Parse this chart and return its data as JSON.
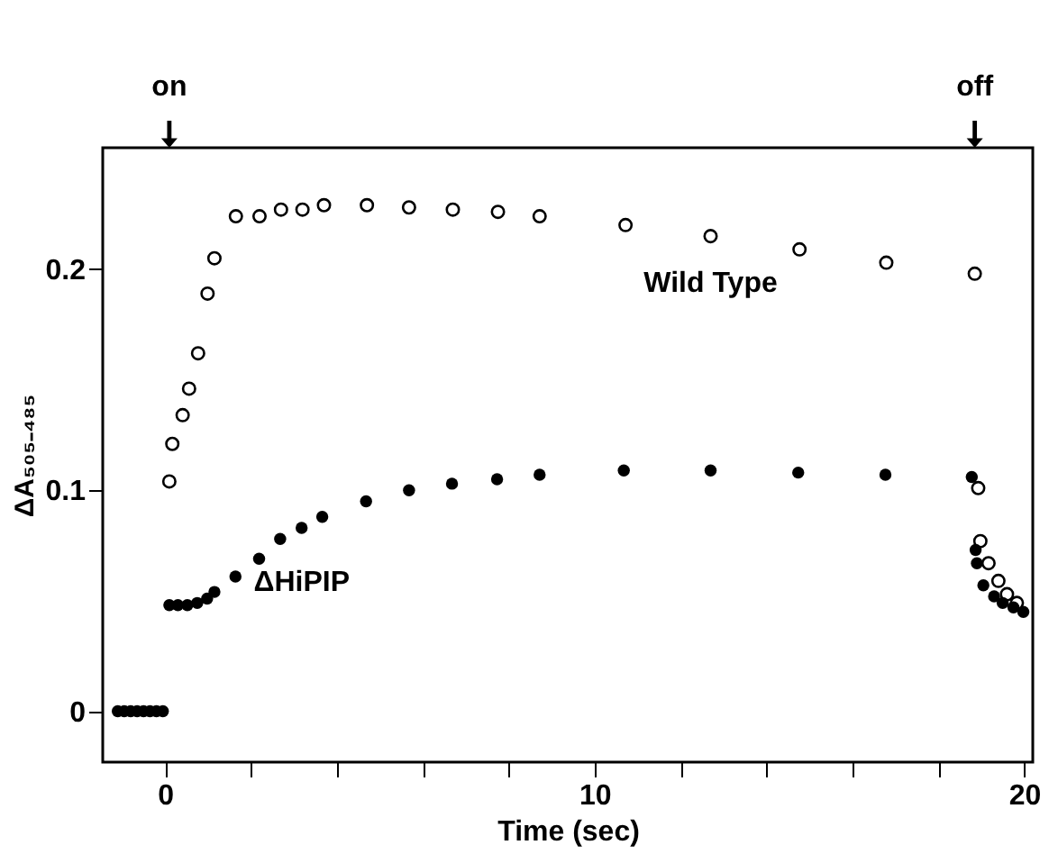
{
  "chart_data": {
    "type": "scatter",
    "xlabel": "Time (sec)",
    "ylabel": "ΔA₅₀₅₋₄₈₅",
    "xlim": [
      -1.45,
      20.2
    ],
    "ylim": [
      -0.023,
      0.255
    ],
    "xticks": [
      0,
      {
        "value": 2,
        "label": null
      },
      {
        "value": 4,
        "label": null
      },
      {
        "value": 6,
        "label": null
      },
      {
        "value": 8,
        "label": null
      },
      10,
      {
        "value": 12,
        "label": null
      },
      {
        "value": 14,
        "label": null
      },
      {
        "value": 16,
        "label": null
      },
      {
        "value": 18,
        "label": null
      },
      20
    ],
    "yticks": [
      0,
      0.1,
      0.2
    ],
    "marker": "circle",
    "annotations": [
      "on",
      "off"
    ],
    "series": [
      {
        "name": "Wild Type",
        "color": "#000000",
        "x": [
          0.1,
          0.17,
          0.41,
          0.56,
          0.77,
          0.99,
          1.15,
          1.65,
          2.2,
          2.7,
          3.2,
          3.7,
          4.7,
          5.68,
          6.7,
          7.75,
          8.72,
          10.72,
          12.7,
          14.77,
          16.79,
          18.85,
          18.93,
          18.98,
          19.17,
          19.4,
          19.6,
          19.83
        ],
        "values": [
          0.104,
          0.121,
          0.134,
          0.146,
          0.162,
          0.189,
          0.205,
          0.224,
          0.224,
          0.227,
          0.227,
          0.229,
          0.229,
          0.228,
          0.227,
          0.226,
          0.224,
          0.22,
          0.215,
          0.209,
          0.203,
          0.198,
          0.101,
          0.077,
          0.067,
          0.059,
          0.053,
          0.049
        ]
      },
      {
        "name": "ΔHiPIP",
        "color": "#000000",
        "x": [
          -1.1,
          -0.95,
          -0.8,
          -0.65,
          -0.5,
          -0.35,
          -0.2,
          -0.05,
          0.1,
          0.3,
          0.52,
          0.75,
          0.98,
          1.15,
          1.64,
          2.19,
          2.68,
          3.18,
          3.66,
          4.68,
          5.68,
          6.68,
          7.73,
          8.72,
          10.68,
          12.7,
          14.74,
          16.77,
          18.78,
          18.87,
          18.9,
          19.05,
          19.3,
          19.5,
          19.75,
          19.98
        ],
        "values": [
          0,
          0,
          0,
          0,
          0,
          0,
          0,
          0,
          0.048,
          0.048,
          0.048,
          0.049,
          0.051,
          0.054,
          0.061,
          0.069,
          0.078,
          0.083,
          0.088,
          0.095,
          0.1,
          0.103,
          0.105,
          0.107,
          0.109,
          0.109,
          0.108,
          0.107,
          0.106,
          0.073,
          0.067,
          0.057,
          0.052,
          0.049,
          0.047,
          0.045
        ]
      }
    ]
  }
}
